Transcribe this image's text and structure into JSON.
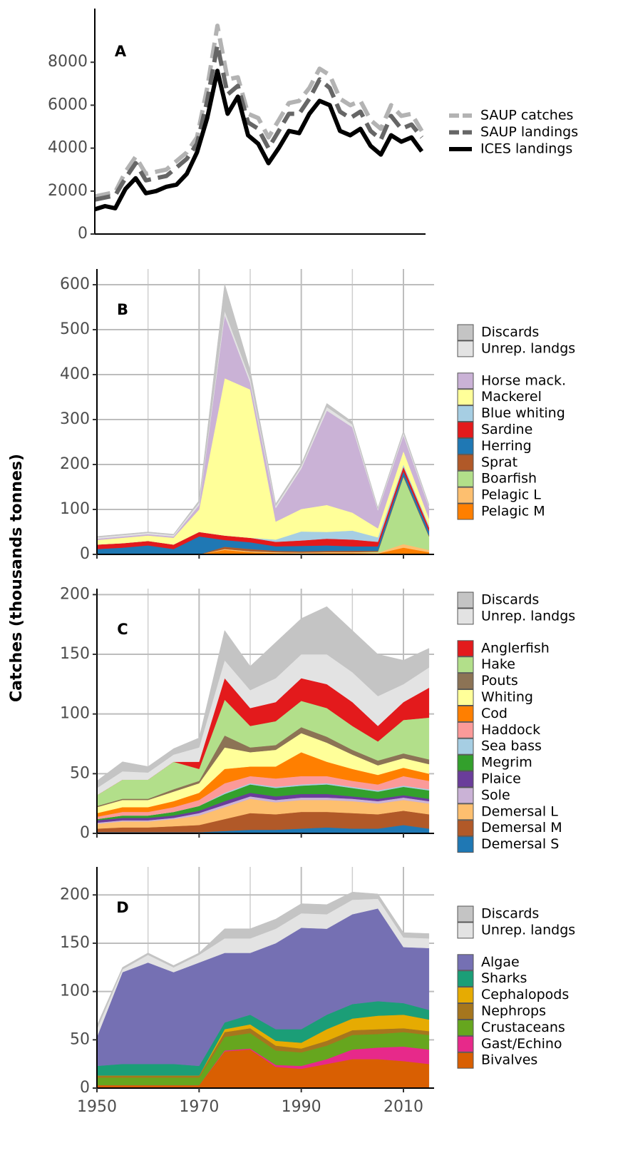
{
  "chart_data": [
    {
      "type": "line",
      "title": "A",
      "xlim": [
        1950,
        2016
      ],
      "ylim": [
        0,
        10500
      ],
      "yticks": [
        0,
        2000,
        4000,
        6000,
        8000
      ],
      "grid": false,
      "x": [
        1950,
        1952,
        1954,
        1956,
        1958,
        1960,
        1962,
        1964,
        1966,
        1968,
        1970,
        1972,
        1974,
        1976,
        1978,
        1980,
        1982,
        1984,
        1986,
        1988,
        1990,
        1992,
        1994,
        1996,
        1998,
        2000,
        2002,
        2004,
        2006,
        2008,
        2010,
        2012,
        2014
      ],
      "series": [
        {
          "name": "SAUP catches",
          "color": "#b3b3b3",
          "style": "dashed",
          "values": [
            1750,
            1850,
            1950,
            2900,
            3600,
            2800,
            2900,
            3000,
            3400,
            3800,
            4500,
            6800,
            9700,
            7200,
            7300,
            5600,
            5400,
            4500,
            5300,
            6100,
            6200,
            6800,
            7700,
            7400,
            6300,
            6000,
            6200,
            5300,
            4900,
            6000,
            5500,
            5600,
            4800
          ]
        },
        {
          "name": "SAUP landings",
          "color": "#666666",
          "style": "dashed",
          "values": [
            1600,
            1700,
            1800,
            2600,
            3300,
            2500,
            2600,
            2700,
            3100,
            3500,
            4200,
            6200,
            8800,
            6500,
            6900,
            5200,
            4900,
            4000,
            4800,
            5600,
            5600,
            6300,
            7200,
            6800,
            5700,
            5400,
            5700,
            4800,
            4400,
            5500,
            4900,
            5100,
            4500
          ]
        },
        {
          "name": "ICES landings",
          "color": "#000000",
          "style": "solid",
          "values": [
            1150,
            1300,
            1200,
            2100,
            2600,
            1900,
            2000,
            2200,
            2300,
            2800,
            3800,
            5400,
            7600,
            5600,
            6400,
            4600,
            4200,
            3300,
            4000,
            4800,
            4700,
            5600,
            6200,
            6000,
            4800,
            4600,
            4900,
            4100,
            3700,
            4600,
            4300,
            4500,
            3850
          ]
        }
      ]
    },
    {
      "type": "area",
      "title": "B",
      "xlim": [
        1950,
        2016
      ],
      "ylim": [
        0,
        635
      ],
      "yticks": [
        0,
        100,
        200,
        300,
        400,
        500,
        600
      ],
      "xticks": [
        1950,
        1970,
        1990,
        2010
      ],
      "x_minor_grid": [
        1960,
        1980,
        2000
      ],
      "xtick_labels": false,
      "grid": true,
      "x": [
        1950,
        1955,
        1960,
        1965,
        1970,
        1975,
        1980,
        1985,
        1990,
        1995,
        2000,
        2005,
        2010,
        2015
      ],
      "series": [
        {
          "name": "Pelagic M",
          "color": "#ff7f00",
          "values": [
            0,
            0,
            0,
            0,
            0,
            10,
            5,
            3,
            2,
            3,
            3,
            2,
            15,
            5
          ]
        },
        {
          "name": "Pelagic L",
          "color": "#fdbf6f",
          "values": [
            0,
            0,
            0,
            0,
            0,
            2,
            2,
            2,
            2,
            2,
            2,
            2,
            8,
            5
          ]
        },
        {
          "name": "Boarfish",
          "color": "#b2df8a",
          "values": [
            0,
            0,
            0,
            0,
            0,
            0,
            0,
            0,
            0,
            0,
            0,
            2,
            150,
            30
          ]
        },
        {
          "name": "Sprat",
          "color": "#b15928",
          "values": [
            0,
            0,
            0,
            0,
            0,
            5,
            5,
            3,
            3,
            3,
            3,
            2,
            2,
            2
          ]
        },
        {
          "name": "Herring",
          "color": "#1f78b4",
          "values": [
            12,
            15,
            20,
            12,
            40,
            15,
            15,
            10,
            12,
            12,
            10,
            10,
            10,
            10
          ]
        },
        {
          "name": "Sardine",
          "color": "#e31a1c",
          "values": [
            10,
            10,
            10,
            10,
            10,
            10,
            10,
            10,
            12,
            15,
            15,
            10,
            10,
            8
          ]
        },
        {
          "name": "Blue whiting",
          "color": "#a6cee3",
          "values": [
            0,
            0,
            0,
            0,
            0,
            0,
            0,
            5,
            20,
            15,
            20,
            10,
            5,
            5
          ]
        },
        {
          "name": "Mackerel",
          "color": "#ffff99",
          "values": [
            10,
            12,
            12,
            15,
            50,
            350,
            330,
            40,
            50,
            60,
            40,
            20,
            30,
            15
          ]
        },
        {
          "name": "Horse mack.",
          "color": "#cab2d6",
          "values": [
            3,
            3,
            3,
            3,
            10,
            140,
            15,
            30,
            90,
            210,
            190,
            40,
            35,
            25
          ]
        },
        {
          "name": "Unrep. landgs",
          "color": "#e3e3e3",
          "values": [
            3,
            3,
            3,
            3,
            5,
            10,
            8,
            5,
            5,
            8,
            6,
            3,
            5,
            3
          ]
        },
        {
          "name": "Discards",
          "color": "#c4c4c4",
          "values": [
            2,
            2,
            2,
            2,
            5,
            60,
            20,
            5,
            5,
            8,
            6,
            3,
            5,
            3
          ]
        }
      ]
    },
    {
      "type": "area",
      "title": "C",
      "ylabel": "Catches (thousands tonnes)",
      "xlim": [
        1950,
        2016
      ],
      "ylim": [
        0,
        205
      ],
      "yticks": [
        0,
        50,
        100,
        150,
        200
      ],
      "xticks": [
        1950,
        1970,
        1990,
        2010
      ],
      "x_minor_grid": [
        1960,
        1980,
        2000
      ],
      "xtick_labels": false,
      "grid": true,
      "x": [
        1950,
        1955,
        1960,
        1965,
        1970,
        1975,
        1980,
        1985,
        1990,
        1995,
        2000,
        2005,
        2010,
        2015
      ],
      "series": [
        {
          "name": "Demersal S",
          "color": "#1f78b4",
          "values": [
            1,
            1,
            1,
            1,
            1,
            2,
            3,
            3,
            4,
            5,
            4,
            4,
            7,
            4
          ]
        },
        {
          "name": "Demersal M",
          "color": "#b15928",
          "values": [
            3,
            4,
            4,
            5,
            6,
            10,
            14,
            13,
            14,
            13,
            13,
            12,
            12,
            12
          ]
        },
        {
          "name": "Demersal L",
          "color": "#fdbf6f",
          "values": [
            4,
            5,
            5,
            6,
            8,
            10,
            12,
            10,
            10,
            10,
            10,
            9,
            9,
            9
          ]
        },
        {
          "name": "Sole",
          "color": "#cab2d6",
          "values": [
            1,
            1,
            1,
            1,
            2,
            2,
            2,
            2,
            2,
            2,
            2,
            2,
            2,
            2
          ]
        },
        {
          "name": "Plaice",
          "color": "#6a3d9a",
          "values": [
            2,
            2,
            2,
            2,
            2,
            3,
            3,
            3,
            3,
            3,
            2,
            2,
            2,
            2
          ]
        },
        {
          "name": "Megrim",
          "color": "#33a02c",
          "values": [
            1,
            2,
            2,
            3,
            4,
            6,
            7,
            7,
            7,
            8,
            7,
            6,
            7,
            7
          ]
        },
        {
          "name": "Sea bass",
          "color": "#a6cee3",
          "values": [
            0,
            0,
            0,
            0,
            0,
            1,
            1,
            1,
            1,
            1,
            1,
            1,
            1,
            1
          ]
        },
        {
          "name": "Haddock",
          "color": "#fb9a99",
          "values": [
            2,
            3,
            3,
            4,
            5,
            8,
            6,
            7,
            7,
            6,
            5,
            5,
            8,
            7
          ]
        },
        {
          "name": "Cod",
          "color": "#ff7f00",
          "values": [
            3,
            4,
            4,
            5,
            6,
            12,
            8,
            10,
            20,
            12,
            10,
            8,
            7,
            6
          ]
        },
        {
          "name": "Whiting",
          "color": "#ffff99",
          "values": [
            5,
            6,
            6,
            8,
            8,
            18,
            12,
            14,
            16,
            16,
            12,
            8,
            8,
            8
          ]
        },
        {
          "name": "Pouts",
          "color": "#8c7355",
          "values": [
            1,
            1,
            1,
            2,
            2,
            10,
            4,
            4,
            5,
            5,
            4,
            4,
            4,
            4
          ]
        },
        {
          "name": "Hake",
          "color": "#b2df8a",
          "values": [
            9,
            16,
            16,
            23,
            10,
            30,
            18,
            20,
            22,
            24,
            20,
            16,
            28,
            35
          ]
        },
        {
          "name": "Anglerfish",
          "color": "#e31a1c",
          "values": [
            0,
            0,
            0,
            0,
            6,
            18,
            15,
            16,
            19,
            20,
            20,
            13,
            15,
            25
          ]
        },
        {
          "name": "Unrep. landgs",
          "color": "#e3e3e3",
          "values": [
            6,
            7,
            6,
            6,
            12,
            15,
            15,
            20,
            20,
            25,
            25,
            25,
            15,
            17
          ]
        },
        {
          "name": "Discards",
          "color": "#c4c4c4",
          "values": [
            6,
            8,
            5,
            5,
            8,
            25,
            20,
            30,
            30,
            40,
            35,
            35,
            20,
            16
          ]
        }
      ]
    },
    {
      "type": "area",
      "title": "D",
      "xlim": [
        1950,
        2016
      ],
      "ylim": [
        0,
        229
      ],
      "yticks": [
        0,
        50,
        100,
        150,
        200
      ],
      "xticks": [
        1950,
        1970,
        1990,
        2010
      ],
      "x_minor_grid": [
        1960,
        1980,
        2000
      ],
      "grid": true,
      "x": [
        1950,
        1955,
        1960,
        1965,
        1970,
        1975,
        1980,
        1985,
        1990,
        1995,
        2000,
        2005,
        2010,
        2015
      ],
      "series": [
        {
          "name": "Bivalves",
          "color": "#d95f02",
          "values": [
            3,
            3,
            3,
            3,
            3,
            38,
            40,
            22,
            20,
            25,
            30,
            30,
            28,
            25
          ]
        },
        {
          "name": "Gast/Echino",
          "color": "#e7298a",
          "values": [
            0,
            0,
            0,
            0,
            0,
            1,
            1,
            2,
            3,
            5,
            10,
            12,
            15,
            15
          ]
        },
        {
          "name": "Crustaceans",
          "color": "#66a61e",
          "values": [
            8,
            8,
            8,
            8,
            8,
            14,
            16,
            15,
            14,
            14,
            15,
            14,
            15,
            15
          ]
        },
        {
          "name": "Nephrops",
          "color": "#a6761d",
          "values": [
            2,
            2,
            2,
            2,
            2,
            5,
            5,
            5,
            4,
            5,
            5,
            5,
            4,
            4
          ]
        },
        {
          "name": "Cephalopods",
          "color": "#e6ab02",
          "values": [
            0,
            0,
            0,
            0,
            0,
            3,
            4,
            5,
            6,
            12,
            12,
            14,
            14,
            12
          ]
        },
        {
          "name": "Sharks",
          "color": "#1b9e77",
          "values": [
            10,
            12,
            12,
            12,
            10,
            7,
            10,
            12,
            14,
            15,
            15,
            15,
            12,
            10
          ]
        },
        {
          "name": "Algae",
          "color": "#7570b3",
          "values": [
            30,
            95,
            105,
            95,
            107,
            72,
            64,
            89,
            105,
            89,
            93,
            96,
            58,
            64
          ]
        },
        {
          "name": "Unrep. landgs",
          "color": "#e3e3e3",
          "values": [
            8,
            3,
            8,
            5,
            8,
            15,
            15,
            15,
            15,
            15,
            15,
            10,
            10,
            10
          ]
        },
        {
          "name": "Discards",
          "color": "#c4c4c4",
          "values": [
            4,
            2,
            2,
            2,
            2,
            10,
            10,
            10,
            10,
            10,
            8,
            5,
            5,
            5
          ]
        }
      ]
    }
  ]
}
